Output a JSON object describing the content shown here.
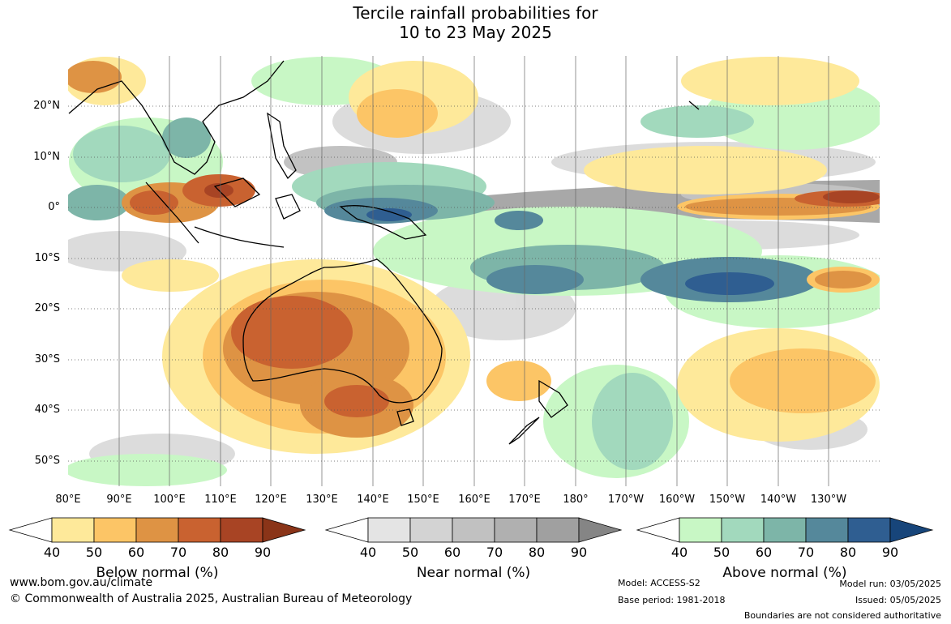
{
  "title_line1": "Tercile rainfall probabilities for",
  "title_line2": "10 to 23 May 2025",
  "axes": {
    "lat_labels": [
      "20°N",
      "10°N",
      "0°",
      "10°S",
      "20°S",
      "30°S",
      "40°S",
      "50°S"
    ],
    "lon_labels": [
      "80°E",
      "90°E",
      "100°E",
      "110°E",
      "120°E",
      "130°E",
      "140°E",
      "150°E",
      "160°E",
      "170°E",
      "180°",
      "170°W",
      "160°W",
      "150°W",
      "140°W",
      "130°W"
    ]
  },
  "legends": [
    {
      "title": "Below normal (%)",
      "ticks": [
        "40",
        "50",
        "60",
        "70",
        "80",
        "90"
      ],
      "colors": [
        "#ffffff",
        "#fee99a",
        "#fcc566",
        "#de9344",
        "#c96230",
        "#a84424",
        "#8a3418"
      ]
    },
    {
      "title": "Near normal (%)",
      "ticks": [
        "40",
        "50",
        "60",
        "70",
        "80",
        "90"
      ],
      "colors": [
        "#ffffff",
        "#e4e4e4",
        "#d3d3d3",
        "#c1c1c1",
        "#b0b0b0",
        "#a0a0a0",
        "#858585"
      ]
    },
    {
      "title": "Above normal (%)",
      "ticks": [
        "40",
        "50",
        "60",
        "70",
        "80",
        "90"
      ],
      "colors": [
        "#ffffff",
        "#c8f7c5",
        "#a2d9bd",
        "#7db5a8",
        "#55889b",
        "#2f5e91",
        "#17457a"
      ]
    }
  ],
  "footer": {
    "website": "www.bom.gov.au/climate",
    "copyright": "© Commonwealth of Australia 2025, Australian Bureau of Meteorology",
    "model": "Model: ACCESS-S2",
    "base_period": "Base period: 1981-2018",
    "model_run": "Model run: 03/05/2025",
    "issued": "Issued: 05/05/2025",
    "disclaimer": "Boundaries are not considered authoritative"
  }
}
